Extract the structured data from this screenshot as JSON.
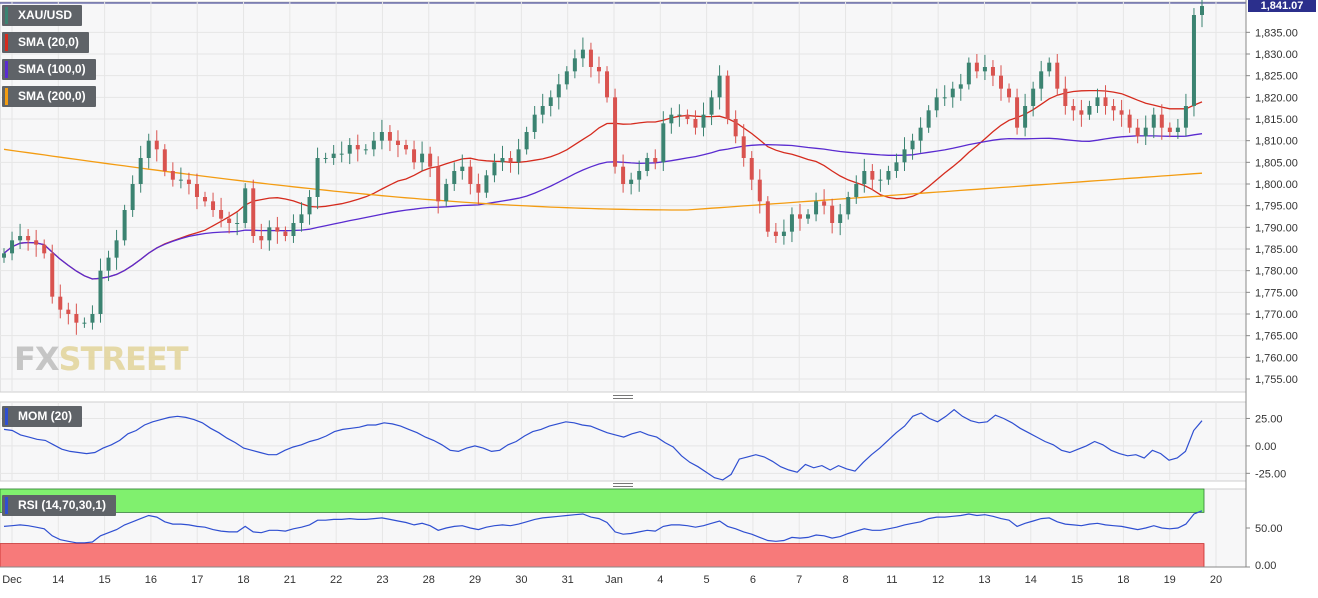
{
  "symbol_label": "XAU/USD",
  "last_price_label": "1,841.07",
  "indicators": [
    {
      "label": "SMA (20,0)",
      "color": "#d52b1e"
    },
    {
      "label": "SMA (100,0)",
      "color": "#5a2bd0"
    },
    {
      "label": "SMA (200,0)",
      "color": "#f39c12"
    }
  ],
  "mom_label": "MOM (20)",
  "rsi_label": "RSI (14,70,30,1)",
  "watermark": {
    "part1": "FX",
    "part2": "STREET"
  },
  "colors": {
    "up": "#3b8371",
    "down": "#d9534f",
    "mom_line": "#2f4fd1",
    "rsi_line": "#2f4fd1",
    "rsi_overbought_band": "#80f06e",
    "rsi_oversold_band": "#f77a7a",
    "grid": "#e6e6e6",
    "last_price_bg": "#2b2f8c"
  },
  "chart_data": {
    "type": "candlestick",
    "price_axis": {
      "ticks": [
        1755,
        1760,
        1765,
        1770,
        1775,
        1780,
        1785,
        1790,
        1795,
        1800,
        1805,
        1810,
        1815,
        1820,
        1825,
        1830,
        1835
      ],
      "tick_labels": [
        "1,755.00",
        "1,760.00",
        "1,765.00",
        "1,770.00",
        "1,775.00",
        "1,780.00",
        "1,785.00",
        "1,790.00",
        "1,795.00",
        "1,800.00",
        "1,805.00",
        "1,810.00",
        "1,815.00",
        "1,820.00",
        "1,825.00",
        "1,830.00",
        "1,835.00"
      ],
      "ylim": [
        1752,
        1842
      ]
    },
    "date_labels": [
      "Dec",
      "14",
      "15",
      "16",
      "17",
      "18",
      "21",
      "22",
      "23",
      "28",
      "29",
      "30",
      "31",
      "Jan",
      "4",
      "5",
      "6",
      "7",
      "8",
      "11",
      "12",
      "13",
      "14",
      "15",
      "18",
      "19",
      "20"
    ],
    "close": [
      1784,
      1787,
      1788,
      1787,
      1786,
      1784,
      1774,
      1771,
      1770,
      1768,
      1768,
      1770,
      1780,
      1783,
      1787,
      1794,
      1800,
      1806,
      1810,
      1808,
      1803,
      1801,
      1801,
      1800,
      1797,
      1796,
      1794,
      1792,
      1791,
      1791,
      1799,
      1788,
      1787,
      1790,
      1789,
      1788,
      1791,
      1793,
      1797,
      1806,
      1806,
      1807,
      1807,
      1809,
      1808,
      1808,
      1810,
      1812,
      1810,
      1809,
      1808,
      1805,
      1807,
      1804,
      1796,
      1800,
      1803,
      1804,
      1800,
      1798,
      1802,
      1805,
      1806,
      1805,
      1808,
      1812,
      1816,
      1818,
      1820,
      1823,
      1826,
      1829,
      1831,
      1827,
      1826,
      1820,
      1804,
      1800,
      1801,
      1803,
      1806,
      1805,
      1814,
      1816,
      1816,
      1815,
      1813,
      1816,
      1820,
      1825,
      1815,
      1811,
      1806,
      1801,
      1796,
      1789,
      1788,
      1789,
      1793,
      1792,
      1793,
      1796,
      1795,
      1791,
      1793,
      1797,
      1800,
      1803,
      1801,
      1801,
      1803,
      1805,
      1808,
      1810,
      1813,
      1817,
      1820,
      1820,
      1822,
      1823,
      1828,
      1826,
      1827,
      1825,
      1822,
      1820,
      1813,
      1818,
      1822,
      1826,
      1828,
      1822,
      1818,
      1817,
      1816,
      1818,
      1820,
      1818,
      1817,
      1816,
      1813,
      1811,
      1813,
      1816,
      1813,
      1812,
      1813,
      1818,
      1839,
      1841.07
    ],
    "mom": {
      "yticks": [
        25,
        0,
        -25
      ],
      "tick_labels": [
        "25.00",
        "0.00",
        "-25.00"
      ],
      "ylim": [
        -32,
        40
      ],
      "values": [
        15,
        14,
        10,
        8,
        6,
        5,
        1,
        -3,
        -5,
        -6,
        -7,
        -6,
        -2,
        1,
        5,
        11,
        14,
        19,
        22,
        24,
        26,
        27,
        26,
        24,
        21,
        16,
        12,
        7,
        3,
        -2,
        -4,
        -6,
        -8,
        -8,
        -4,
        -1,
        1,
        4,
        6,
        9,
        13,
        15,
        16,
        17,
        19,
        19,
        21,
        20,
        18,
        15,
        12,
        8,
        5,
        1,
        -4,
        -5,
        -2,
        0,
        -2,
        -5,
        -4,
        1,
        4,
        9,
        13,
        15,
        18,
        20,
        22,
        21,
        19,
        18,
        15,
        12,
        10,
        8,
        11,
        13,
        10,
        8,
        3,
        -1,
        -9,
        -15,
        -19,
        -24,
        -29,
        -31,
        -26,
        -12,
        -10,
        -8,
        -10,
        -14,
        -19,
        -22,
        -24,
        -17,
        -20,
        -18,
        -22,
        -18,
        -21,
        -23,
        -15,
        -8,
        -2,
        5,
        12,
        18,
        27,
        30,
        25,
        22,
        27,
        33,
        27,
        23,
        21,
        22,
        28,
        25,
        21,
        16,
        12,
        8,
        4,
        1,
        -4,
        -6,
        -3,
        0,
        4,
        1,
        -4,
        -7,
        -9,
        -8,
        -11,
        -4,
        -7,
        -13,
        -11,
        -5,
        14,
        23
      ]
    },
    "rsi": {
      "yticks": [
        50,
        0
      ],
      "tick_labels": [
        "50.00",
        "0.00"
      ],
      "ylim": [
        0,
        100
      ],
      "overbought": 70,
      "oversold": 30,
      "values": [
        52,
        53,
        54,
        53,
        51,
        49,
        40,
        35,
        33,
        31,
        31,
        32,
        40,
        44,
        48,
        54,
        58,
        62,
        66,
        64,
        58,
        55,
        55,
        54,
        52,
        51,
        48,
        46,
        45,
        45,
        52,
        45,
        44,
        47,
        47,
        46,
        49,
        51,
        54,
        60,
        60,
        61,
        61,
        62,
        61,
        61,
        62,
        63,
        61,
        59,
        57,
        54,
        56,
        53,
        47,
        50,
        52,
        53,
        50,
        48,
        51,
        53,
        54,
        53,
        55,
        58,
        61,
        63,
        64,
        65,
        66,
        67,
        68,
        64,
        62,
        57,
        45,
        42,
        43,
        45,
        47,
        46,
        52,
        54,
        54,
        53,
        51,
        53,
        56,
        59,
        52,
        49,
        45,
        42,
        38,
        34,
        33,
        34,
        38,
        37,
        38,
        41,
        40,
        37,
        39,
        43,
        46,
        49,
        47,
        47,
        49,
        51,
        54,
        56,
        58,
        62,
        64,
        64,
        65,
        66,
        68,
        66,
        67,
        65,
        62,
        60,
        52,
        56,
        59,
        62,
        63,
        58,
        55,
        54,
        53,
        55,
        56,
        54,
        53,
        52,
        50,
        48,
        50,
        53,
        50,
        49,
        50,
        55,
        68,
        72
      ]
    }
  }
}
